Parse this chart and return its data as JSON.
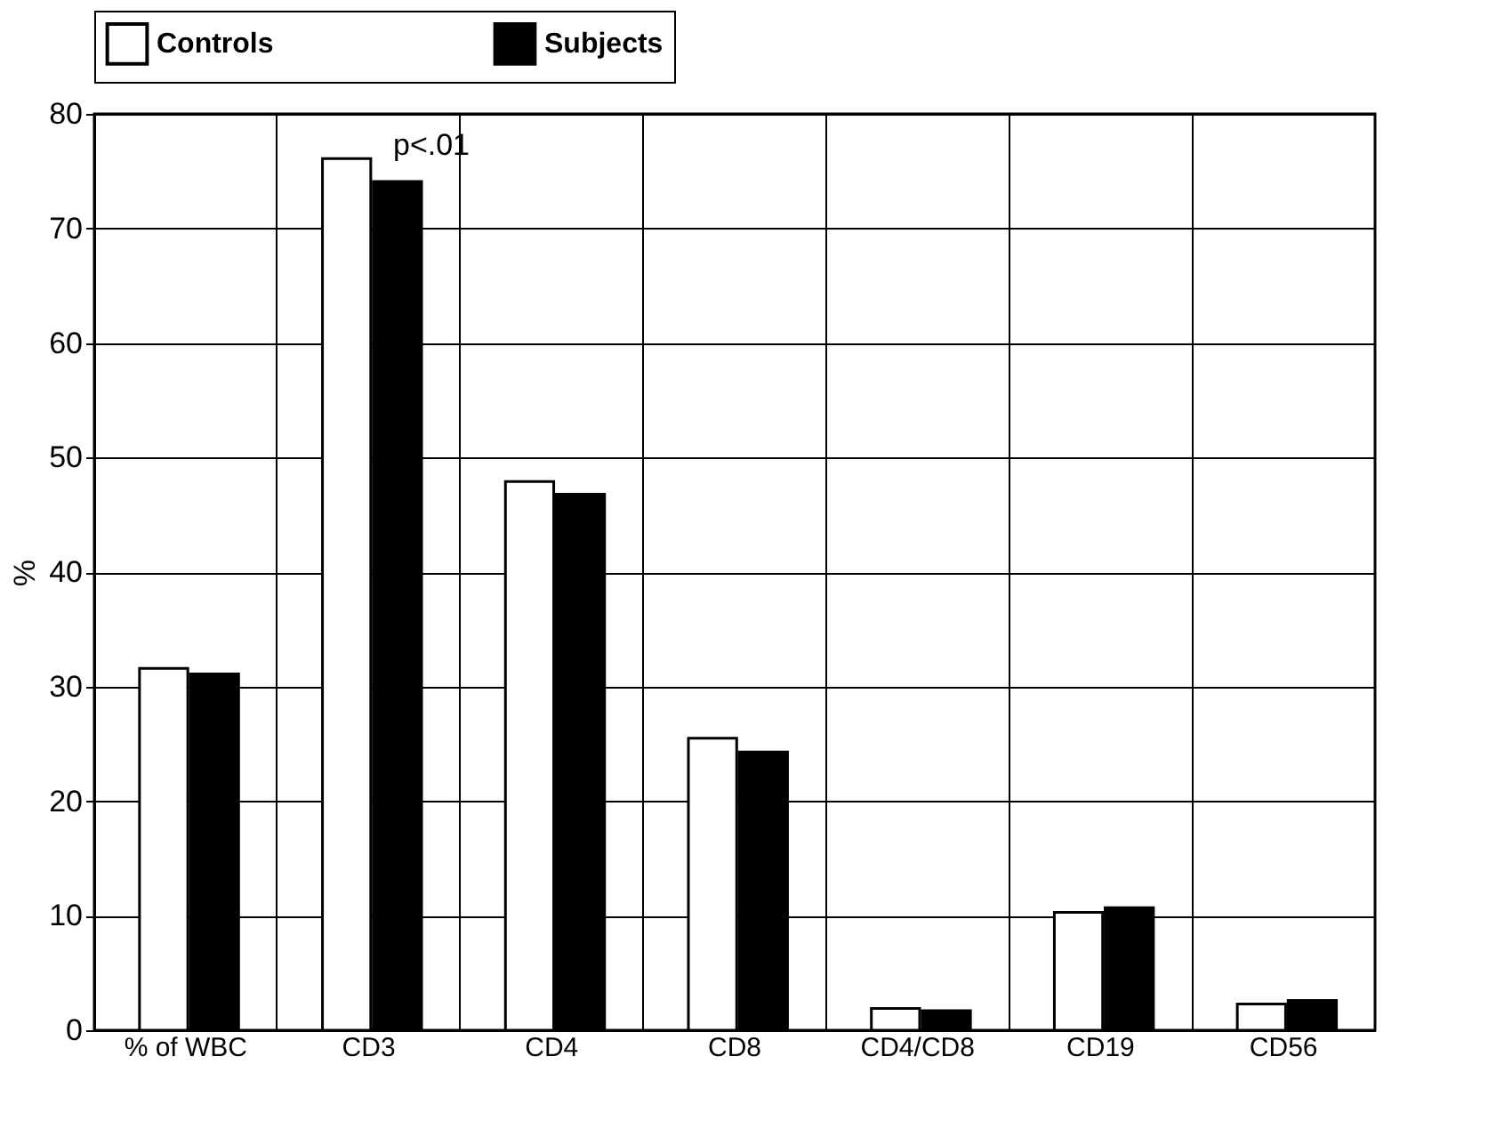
{
  "chart_data": {
    "type": "bar",
    "ylabel": "%",
    "categories": [
      "% of WBC",
      "CD3",
      "CD4",
      "CD8",
      "CD4/CD8",
      "CD19",
      "CD56"
    ],
    "series": [
      {
        "name": "Controls",
        "color": "#ffffff",
        "values": [
          31.6,
          76.1,
          47.9,
          25.5,
          1.9,
          10.3,
          2.3
        ]
      },
      {
        "name": "Subjects",
        "color": "#000000",
        "values": [
          31.1,
          74.1,
          46.8,
          24.3,
          1.7,
          10.7,
          2.6
        ]
      }
    ],
    "ylim": [
      0,
      80
    ],
    "yticks": [
      0,
      10,
      20,
      30,
      40,
      50,
      60,
      70,
      80
    ],
    "grid": true,
    "legend": "top",
    "annotations": [
      "p<.01"
    ]
  }
}
